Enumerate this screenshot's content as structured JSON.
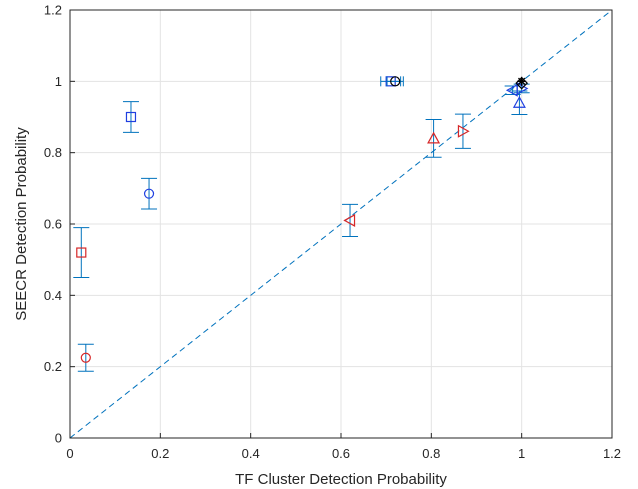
{
  "chart_data": {
    "type": "scatter",
    "title": "",
    "xlabel": "TF Cluster Detection Probability",
    "ylabel": "SEECR Detection Probability",
    "xlim": [
      0,
      1.2
    ],
    "ylim": [
      0,
      1.2
    ],
    "xticks": [
      "0",
      "0.2",
      "0.4",
      "0.6",
      "0.8",
      "1",
      "1.2"
    ],
    "yticks": [
      "0",
      "0.2",
      "0.4",
      "0.6",
      "0.8",
      "1",
      "1.2"
    ],
    "grid": true,
    "legend": "none",
    "reference_line": {
      "from": [
        0,
        0
      ],
      "to": [
        1.2,
        1.2
      ],
      "style": "dashed",
      "color": "#0072BD"
    },
    "colors": {
      "errorbar": "#0072BD",
      "red": "#D62728",
      "blue": "#1F3FE0",
      "black": "#000000",
      "grid": "#e3e3e3",
      "axis": "#262626"
    },
    "points": [
      {
        "x": 0.025,
        "y": 0.52,
        "err": 0.07,
        "marker": "square",
        "color": "red"
      },
      {
        "x": 0.035,
        "y": 0.225,
        "err": 0.038,
        "marker": "circle",
        "color": "red"
      },
      {
        "x": 0.135,
        "y": 0.9,
        "err": 0.043,
        "marker": "square",
        "color": "blue"
      },
      {
        "x": 0.175,
        "y": 0.685,
        "err": 0.043,
        "marker": "circle",
        "color": "blue"
      },
      {
        "x": 0.62,
        "y": 0.61,
        "err": 0.045,
        "marker": "triangle-left",
        "color": "red"
      },
      {
        "x": 0.805,
        "y": 0.84,
        "err": 0.053,
        "marker": "triangle-up",
        "color": "red"
      },
      {
        "x": 0.87,
        "y": 0.86,
        "err": 0.048,
        "marker": "triangle-right",
        "color": "red"
      },
      {
        "x": 0.71,
        "y": 1.0,
        "err": 0.0,
        "hx": 0.022,
        "marker": "square",
        "color": "blue"
      },
      {
        "x": 0.72,
        "y": 1.0,
        "err": 0.0,
        "hx": 0.018,
        "marker": "circle",
        "color": "black"
      },
      {
        "x": 0.98,
        "y": 0.975,
        "err": 0.012,
        "marker": "triangle-left",
        "color": "blue"
      },
      {
        "x": 0.995,
        "y": 0.94,
        "err": 0.033,
        "marker": "triangle-up",
        "color": "blue"
      },
      {
        "x": 1.0,
        "y": 0.98,
        "err": 0.012,
        "marker": "triangle-right",
        "color": "blue"
      },
      {
        "x": 1.0,
        "y": 1.0,
        "err": 0.0,
        "marker": "star",
        "color": "black"
      },
      {
        "x": 1.0,
        "y": 0.995,
        "err": 0.0,
        "marker": "diamond",
        "color": "black"
      }
    ]
  }
}
